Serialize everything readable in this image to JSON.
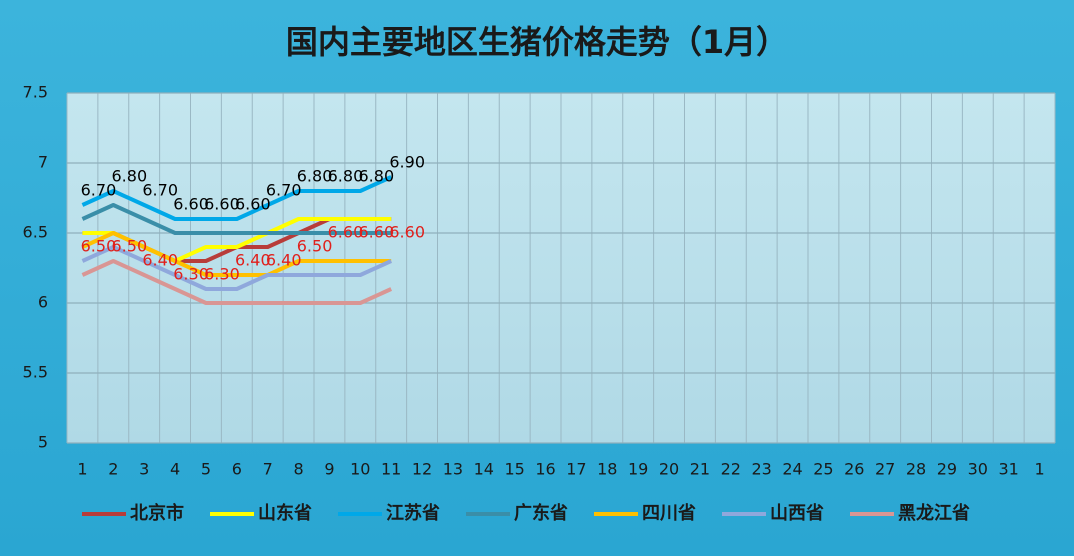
{
  "chart_data": {
    "type": "line",
    "title": "国内主要地区生猪价格走势（1月）",
    "categories": [
      "1",
      "2",
      "3",
      "4",
      "5",
      "6",
      "7",
      "8",
      "9",
      "10",
      "11",
      "12",
      "13",
      "14",
      "15",
      "16",
      "17",
      "18",
      "19",
      "20",
      "21",
      "22",
      "23",
      "24",
      "25",
      "26",
      "27",
      "28",
      "29",
      "30",
      "31",
      "1"
    ],
    "ylim": [
      5,
      7.5
    ],
    "yticks": [
      5,
      5.5,
      6,
      6.5,
      7,
      7.5
    ],
    "grid": true,
    "legend": "bottom",
    "series": [
      {
        "name": "北京市",
        "color": "#b83c3a",
        "values": [
          6.5,
          6.5,
          6.4,
          6.3,
          6.3,
          6.4,
          6.4,
          6.5,
          6.6,
          6.6,
          6.6,
          null,
          null,
          null,
          null,
          null,
          null,
          null,
          null,
          null,
          null,
          null,
          null,
          null,
          null,
          null,
          null,
          null,
          null,
          null,
          null,
          null
        ],
        "value_labels": [
          "6.50",
          "6.50",
          "6.40",
          "6.30",
          "6.30",
          "6.40",
          "6.40",
          "6.50",
          "6.60",
          "6.60",
          "6.60",
          null,
          null,
          null,
          null,
          null,
          null,
          null,
          null,
          null,
          null,
          null,
          null,
          null,
          null,
          null,
          null,
          null,
          null,
          null,
          null,
          null
        ],
        "label_color": "#e0201c"
      },
      {
        "name": "山东省",
        "color": "#ffff00",
        "values": [
          6.5,
          6.5,
          6.4,
          6.3,
          6.4,
          6.4,
          6.5,
          6.6,
          6.6,
          6.6,
          6.6,
          null,
          null,
          null,
          null,
          null,
          null,
          null,
          null,
          null,
          null,
          null,
          null,
          null,
          null,
          null,
          null,
          null,
          null,
          null,
          null,
          null
        ]
      },
      {
        "name": "江苏省",
        "color": "#00a8e8",
        "values": [
          6.7,
          6.8,
          6.7,
          6.6,
          6.6,
          6.6,
          6.7,
          6.8,
          6.8,
          6.8,
          6.9,
          null,
          null,
          null,
          null,
          null,
          null,
          null,
          null,
          null,
          null,
          null,
          null,
          null,
          null,
          null,
          null,
          null,
          null,
          null,
          null,
          null
        ],
        "value_labels": [
          "6.70",
          "6.80",
          "6.70",
          "6.60",
          "6.60",
          "6.60",
          "6.70",
          "6.80",
          "6.80",
          "6.80",
          "6.90",
          null,
          null,
          null,
          null,
          null,
          null,
          null,
          null,
          null,
          null,
          null,
          null,
          null,
          null,
          null,
          null,
          null,
          null,
          null,
          null,
          null
        ],
        "label_color": "#000000"
      },
      {
        "name": "广东省",
        "color": "#3a8ea8",
        "values": [
          6.6,
          6.7,
          6.6,
          6.5,
          6.5,
          6.5,
          6.5,
          6.5,
          6.5,
          6.5,
          6.5,
          null,
          null,
          null,
          null,
          null,
          null,
          null,
          null,
          null,
          null,
          null,
          null,
          null,
          null,
          null,
          null,
          null,
          null,
          null,
          null,
          null
        ]
      },
      {
        "name": "四川省",
        "color": "#ffc000",
        "values": [
          6.4,
          6.5,
          6.4,
          6.3,
          6.2,
          6.2,
          6.2,
          6.3,
          6.3,
          6.3,
          6.3,
          null,
          null,
          null,
          null,
          null,
          null,
          null,
          null,
          null,
          null,
          null,
          null,
          null,
          null,
          null,
          null,
          null,
          null,
          null,
          null,
          null
        ]
      },
      {
        "name": "山西省",
        "color": "#8fa8dc",
        "values": [
          6.3,
          6.4,
          6.3,
          6.2,
          6.1,
          6.1,
          6.2,
          6.2,
          6.2,
          6.2,
          6.3,
          null,
          null,
          null,
          null,
          null,
          null,
          null,
          null,
          null,
          null,
          null,
          null,
          null,
          null,
          null,
          null,
          null,
          null,
          null,
          null,
          null
        ]
      },
      {
        "name": "黑龙江省",
        "color": "#d99694",
        "values": [
          6.2,
          6.3,
          6.2,
          6.1,
          6.0,
          6.0,
          6.0,
          6.0,
          6.0,
          6.0,
          6.1,
          null,
          null,
          null,
          null,
          null,
          null,
          null,
          null,
          null,
          null,
          null,
          null,
          null,
          null,
          null,
          null,
          null,
          null,
          null,
          null,
          null
        ]
      }
    ]
  }
}
